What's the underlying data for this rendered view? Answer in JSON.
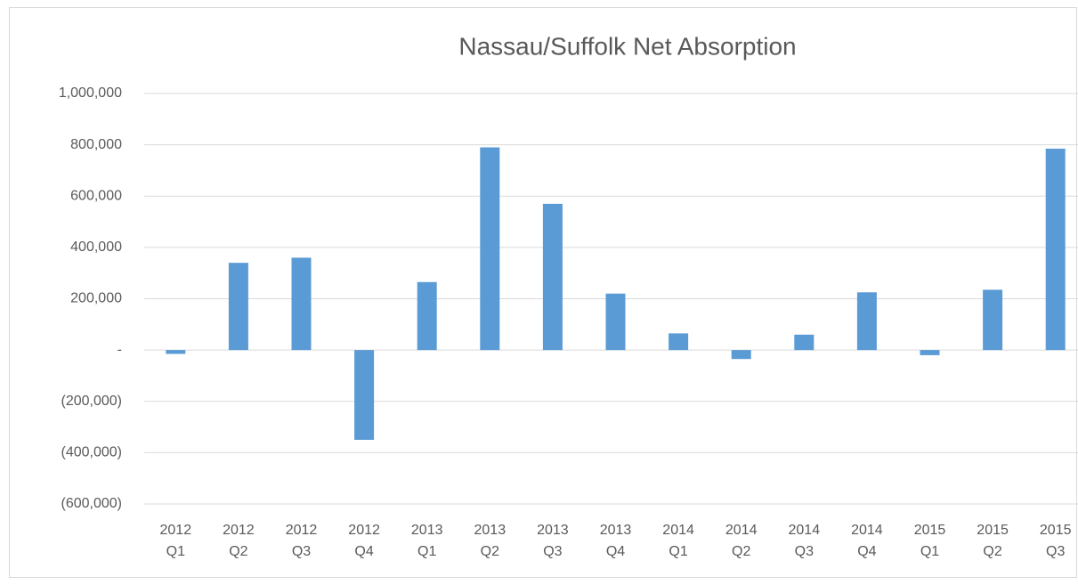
{
  "chart_data": {
    "type": "bar",
    "title": "Nassau/Suffolk Net Absorption",
    "categories": [
      "2012 Q1",
      "2012 Q2",
      "2012 Q3",
      "2012 Q4",
      "2013 Q1",
      "2013 Q2",
      "2013 Q3",
      "2013 Q4",
      "2014 Q1",
      "2014 Q2",
      "2014 Q3",
      "2014 Q4",
      "2015 Q1",
      "2015 Q2",
      "2015 Q3"
    ],
    "values": [
      -15000,
      340000,
      360000,
      -350000,
      265000,
      790000,
      570000,
      220000,
      65000,
      -35000,
      60000,
      225000,
      -20000,
      235000,
      785000
    ],
    "color": "#5b9bd5",
    "ylim": [
      -600000,
      1000000
    ],
    "yticks": [
      {
        "value": -600000,
        "label": "(600,000)"
      },
      {
        "value": -400000,
        "label": "(400,000)"
      },
      {
        "value": -200000,
        "label": "(200,000)"
      },
      {
        "value": 0,
        "label": "-"
      },
      {
        "value": 200000,
        "label": "200,000"
      },
      {
        "value": 400000,
        "label": "400,000"
      },
      {
        "value": 600000,
        "label": "600,000"
      },
      {
        "value": 800000,
        "label": "800,000"
      },
      {
        "value": 1000000,
        "label": "1,000,000"
      }
    ],
    "grid": true
  }
}
